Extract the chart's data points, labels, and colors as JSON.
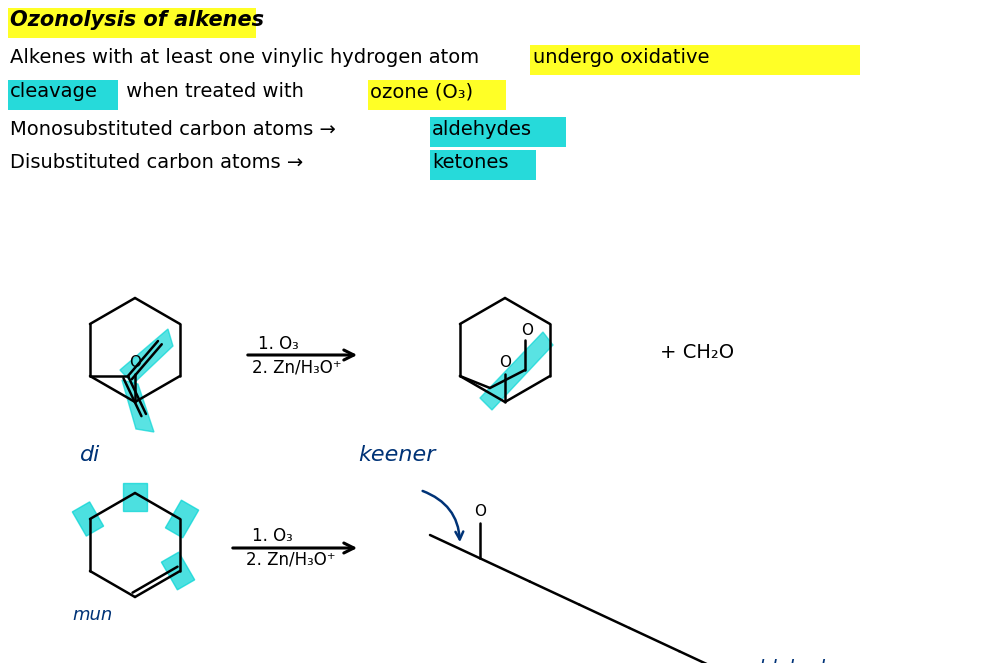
{
  "bg_color": "#ffffff",
  "text_color": "#000000",
  "cyan_color": "#00d4d4",
  "yellow_color": "#ffff00",
  "title": "Ozonolysis of alkenes",
  "line1_plain": "Alkenes with at least one vinylic hydrogen atom ",
  "line1_hl": "undergo oxidative",
  "line2_hl": "cleavage",
  "line2_plain": " when treated with ",
  "line2_ozone": "ozone (O₃)",
  "line3_plain": "Monosubstituted carbon atoms → ",
  "line3_hl": "aldehydes",
  "line4_plain": "Disubstituted carbon atoms → ",
  "line4_hl": "ketones",
  "reagent1_a": "1. O₃",
  "reagent1_b": "2. Zn/H₃O⁺",
  "ch2o": "+ CH₂O",
  "label_di": "di",
  "label_keener": "keener",
  "label_mun": "mun",
  "label_aldehyde": "aldehyde"
}
